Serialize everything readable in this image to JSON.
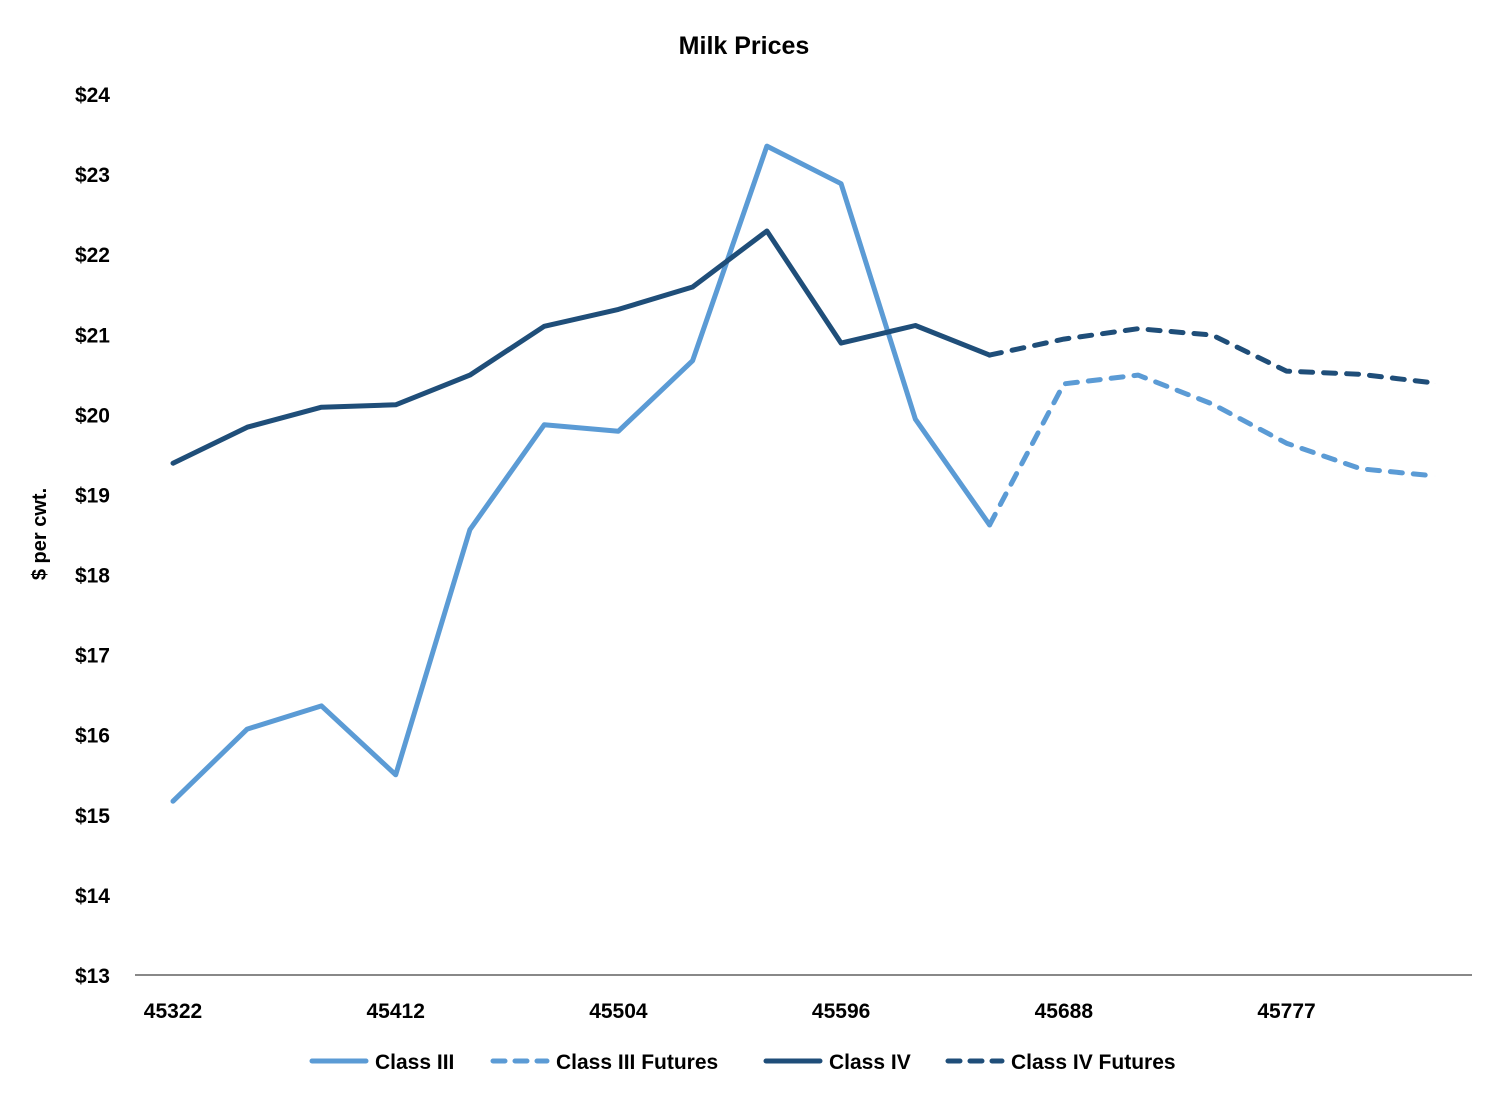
{
  "chart_data": {
    "type": "line",
    "title": "Milk Prices",
    "xlabel": "",
    "ylabel": "$ per cwt.",
    "ylim": [
      13,
      24
    ],
    "yticks": [
      "$13",
      "$14",
      "$15",
      "$16",
      "$17",
      "$18",
      "$19",
      "$20",
      "$21",
      "$22",
      "$23",
      "$24"
    ],
    "x_count": 18,
    "xtick_labels": [
      {
        "index": 0,
        "label": "45322"
      },
      {
        "index": 3,
        "label": "45412"
      },
      {
        "index": 6,
        "label": "45504"
      },
      {
        "index": 9,
        "label": "45596"
      },
      {
        "index": 12,
        "label": "45688"
      },
      {
        "index": 15,
        "label": "45777"
      }
    ],
    "grid": false,
    "legend_position": "bottom",
    "series": [
      {
        "name": "Class III",
        "color": "#5B9BD5",
        "dash": false,
        "start": 0,
        "values": [
          15.17,
          16.07,
          16.36,
          15.5,
          18.56,
          19.87,
          19.79,
          20.67,
          23.35,
          22.88,
          19.94,
          18.62
        ]
      },
      {
        "name": "Class III Futures",
        "color": "#5B9BD5",
        "dash": true,
        "start": 11,
        "values": [
          18.62,
          20.38,
          20.49,
          20.13,
          19.64,
          19.32,
          19.23
        ]
      },
      {
        "name": "Class IV",
        "color": "#1F4E79",
        "dash": false,
        "start": 0,
        "values": [
          19.39,
          19.84,
          20.09,
          20.12,
          20.49,
          21.1,
          21.31,
          21.59,
          22.29,
          20.89,
          21.11,
          20.74
        ]
      },
      {
        "name": "Class IV Futures",
        "color": "#1F4E79",
        "dash": true,
        "start": 11,
        "values": [
          20.74,
          20.94,
          21.07,
          20.99,
          20.54,
          20.5,
          20.39
        ]
      }
    ]
  }
}
